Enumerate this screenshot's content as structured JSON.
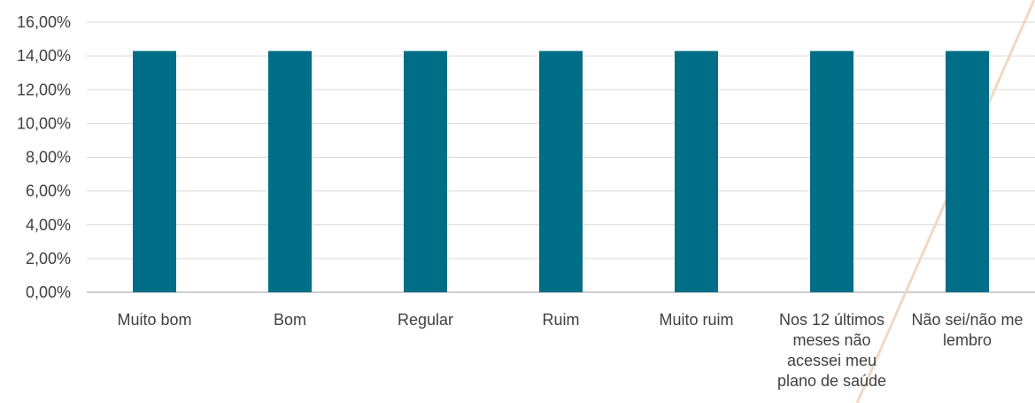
{
  "chart_data": {
    "type": "bar",
    "categories": [
      [
        "Muito bom"
      ],
      [
        "Bom"
      ],
      [
        "Regular"
      ],
      [
        "Ruim"
      ],
      [
        "Muito ruim"
      ],
      [
        "Nos 12 últimos",
        "meses não",
        "acessei meu",
        "plano de saúde"
      ],
      [
        "Não sei/não me",
        "lembro"
      ]
    ],
    "values": [
      14.29,
      14.29,
      14.29,
      14.29,
      14.29,
      14.29,
      14.29
    ],
    "ylim": [
      0,
      16
    ],
    "yticks": [
      "0,00%",
      "2,00%",
      "4,00%",
      "6,00%",
      "8,00%",
      "10,00%",
      "12,00%",
      "14,00%",
      "16,00%"
    ],
    "grid": true,
    "bar_color": "#006E87",
    "grid_color": "#D9D9D9",
    "decor_line_color": "#F2D8C2"
  }
}
